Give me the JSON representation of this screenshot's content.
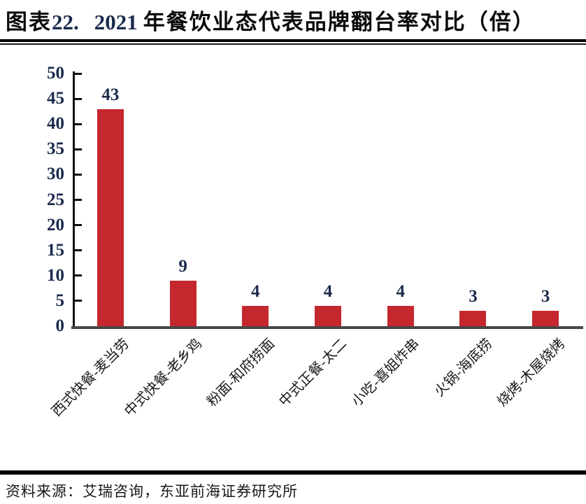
{
  "title": {
    "prefix_text": "图表",
    "number": "22.",
    "year": "2021",
    "main": "年餐饮业态代表品牌翻台率对比（倍）"
  },
  "chart_data": {
    "type": "bar",
    "title": "图表22. 2021 年餐饮业态代表品牌翻台率对比（倍）",
    "categories": [
      "西式快餐-麦当劳",
      "中式快餐-老乡鸡",
      "粉面-和府捞面",
      "中式正餐-太二",
      "小吃-喜姐炸串",
      "火锅-海底捞",
      "烧烤-木屋烧烤"
    ],
    "values": [
      43,
      9,
      4,
      4,
      4,
      3,
      3
    ],
    "xlabel": "",
    "ylabel": "",
    "ylim": [
      0,
      50
    ],
    "yticks": [
      0,
      5,
      10,
      15,
      20,
      25,
      30,
      35,
      40,
      45,
      50
    ],
    "grid": false,
    "legend": false,
    "bar_color": "#c5272e",
    "value_label_color": "#1b2a4c",
    "axis_number_color": "#1b2a4c"
  },
  "source": {
    "label": "资料来源：",
    "text": "艾瑞咨询，东亚前海证券研究所"
  }
}
